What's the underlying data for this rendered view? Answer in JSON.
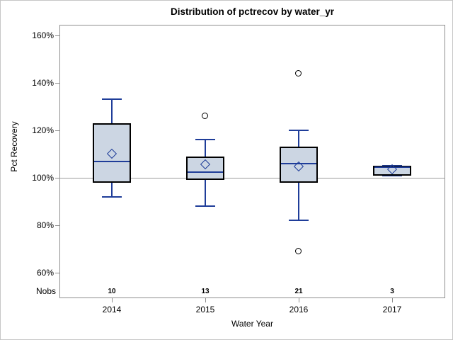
{
  "chart_data": {
    "type": "boxplot",
    "title": "Distribution of pctrecov by water_yr",
    "xlabel": "Water Year",
    "ylabel": "Pct Recovery",
    "nobs_label": "Nobs",
    "y_axis": {
      "tick_labels": [
        "160%",
        "140%",
        "120%",
        "100%",
        "80%",
        "60%"
      ],
      "tick_values": [
        160,
        140,
        120,
        100,
        80,
        60
      ],
      "ylim": [
        55,
        165
      ],
      "grid": false
    },
    "reference_line": 100,
    "categories": [
      "2014",
      "2015",
      "2016",
      "2017"
    ],
    "groups": [
      {
        "year": "2014",
        "nobs": "10",
        "whisker_low": 92,
        "q1": 98,
        "median": 107,
        "q3": 123,
        "whisker_high": 133,
        "mean": 110,
        "outliers": []
      },
      {
        "year": "2015",
        "nobs": "13",
        "whisker_low": 88,
        "q1": 99,
        "median": 102.5,
        "q3": 109,
        "whisker_high": 116,
        "mean": 105.5,
        "outliers": [
          126
        ]
      },
      {
        "year": "2016",
        "nobs": "21",
        "whisker_low": 82,
        "q1": 98,
        "median": 106,
        "q3": 113,
        "whisker_high": 120,
        "mean": 104.5,
        "outliers": [
          144,
          69
        ]
      },
      {
        "year": "2017",
        "nobs": "3",
        "whisker_low": 101,
        "q1": 101,
        "median": 104.5,
        "q3": 105,
        "whisker_high": 105,
        "mean": 103.5,
        "outliers": []
      }
    ],
    "colors": {
      "box_fill": "#ccd6e3",
      "box_border": "#000000",
      "line_blue": "#1f3d99",
      "axis_gray": "#8f8f8f",
      "reference_gray": "#9d9d9d",
      "outlier_black": "#000000"
    }
  }
}
